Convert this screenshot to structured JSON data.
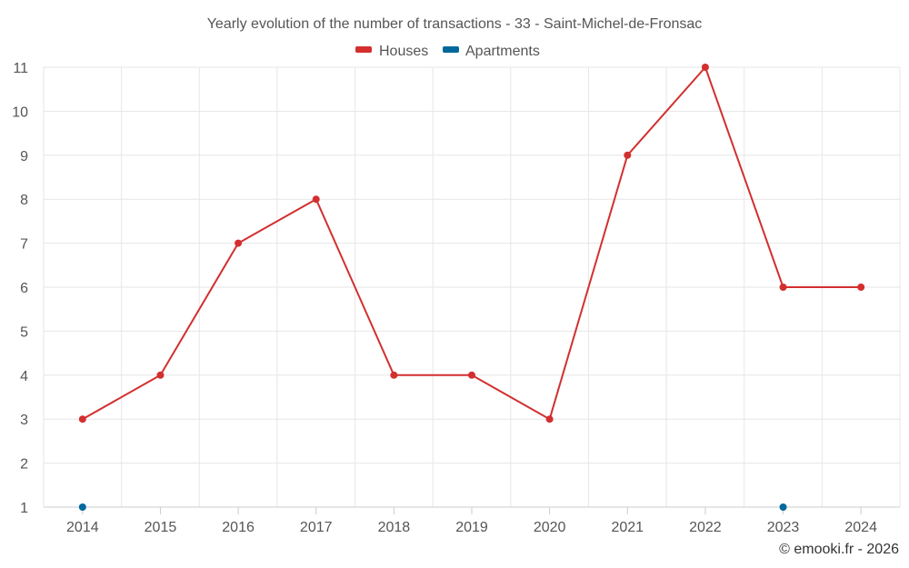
{
  "chart_data": {
    "type": "line",
    "title": "Yearly evolution of the number of transactions - 33 - Saint-Michel-de-Fronsac",
    "categories": [
      "2014",
      "2015",
      "2016",
      "2017",
      "2018",
      "2019",
      "2020",
      "2021",
      "2022",
      "2023",
      "2024"
    ],
    "ylim": [
      1,
      11
    ],
    "yticks": [
      "1",
      "2",
      "3",
      "4",
      "5",
      "6",
      "7",
      "8",
      "9",
      "10",
      "11"
    ],
    "grid": true,
    "legend_position": "top-center",
    "series": [
      {
        "name": "Houses",
        "color": "#d32f2f",
        "values": [
          3,
          4,
          7,
          8,
          4,
          4,
          3,
          9,
          11,
          6,
          6
        ]
      },
      {
        "name": "Apartments",
        "color": "#01689b",
        "values": [
          1,
          null,
          null,
          null,
          null,
          null,
          null,
          null,
          null,
          1,
          null
        ]
      }
    ],
    "credit": "© emooki.fr - 2026"
  }
}
